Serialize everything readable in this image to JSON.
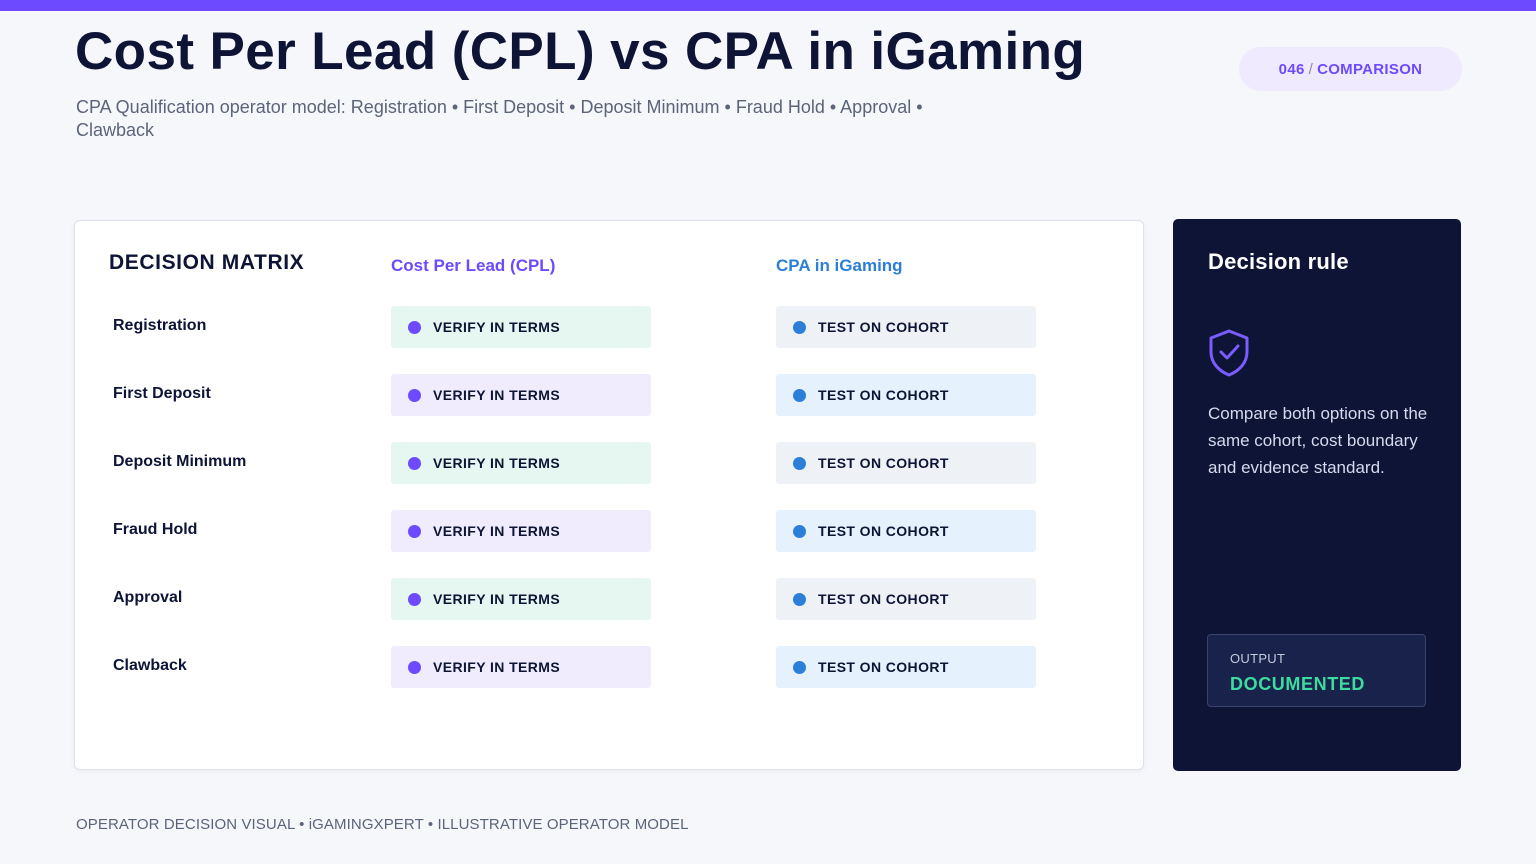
{
  "header": {
    "title": "Cost Per Lead (CPL) vs CPA in iGaming",
    "subtitle": "CPA Qualification operator model: Registration • First Deposit • Deposit Minimum • Fraud Hold • Approval • Clawback",
    "badge_number": "046",
    "badge_separator": "/",
    "badge_label": "COMPARISON"
  },
  "matrix": {
    "heading": "DECISION MATRIX",
    "columns": [
      "Cost Per Lead (CPL)",
      "CPA in iGaming"
    ],
    "rows": [
      {
        "label": "Registration",
        "a": "VERIFY IN TERMS",
        "b": "TEST ON COHORT"
      },
      {
        "label": "First Deposit",
        "a": "VERIFY IN TERMS",
        "b": "TEST ON COHORT"
      },
      {
        "label": "Deposit Minimum",
        "a": "VERIFY IN TERMS",
        "b": "TEST ON COHORT"
      },
      {
        "label": "Fraud Hold",
        "a": "VERIFY IN TERMS",
        "b": "TEST ON COHORT"
      },
      {
        "label": "Approval",
        "a": "VERIFY IN TERMS",
        "b": "TEST ON COHORT"
      },
      {
        "label": "Clawback",
        "a": "VERIFY IN TERMS",
        "b": "TEST ON COHORT"
      }
    ]
  },
  "rule": {
    "title": "Decision rule",
    "icon": "shield-check-icon",
    "text": "Compare both options on the same cohort, cost boundary and evidence standard.",
    "output_label": "OUTPUT",
    "output_value": "DOCUMENTED"
  },
  "footer": {
    "text": "OPERATOR DECISION VISUAL • iGAMINGXPERT • ILLUSTRATIVE OPERATOR MODEL"
  },
  "colors": {
    "accent": "#6d4aff",
    "secondary": "#2c7fd8",
    "dark_panel": "#0d1436",
    "output_green": "#3ddba0"
  }
}
